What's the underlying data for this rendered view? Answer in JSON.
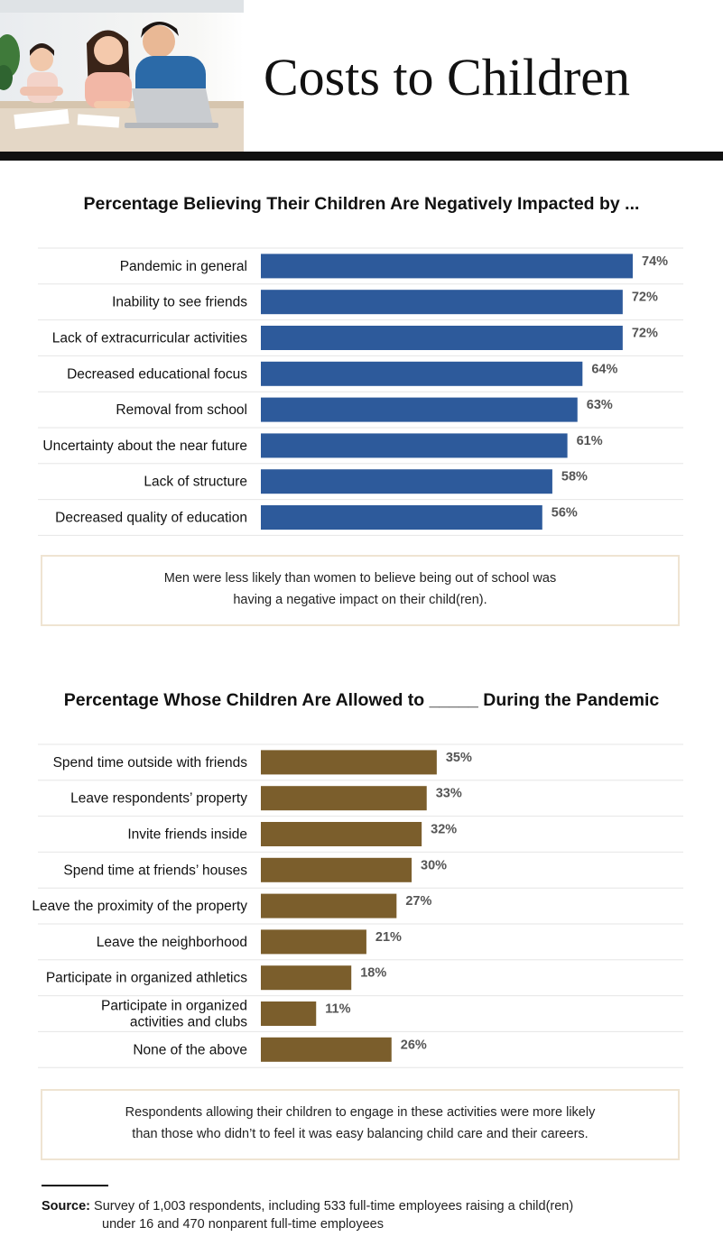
{
  "page": {
    "title": "Costs to Children"
  },
  "chart_data": [
    {
      "type": "bar",
      "orientation": "horizontal",
      "title": "Percentage Believing Their Children Are Negatively Impacted by ...",
      "categories": [
        "Pandemic in general",
        "Inability to see friends",
        "Lack of extracurricular activities",
        "Decreased educational focus",
        "Removal from school",
        "Uncertainty about the near future",
        "Lack of structure",
        "Decreased quality of education"
      ],
      "values": [
        74,
        72,
        72,
        64,
        63,
        61,
        58,
        56
      ],
      "value_labels": [
        "74%",
        "72%",
        "72%",
        "64%",
        "63%",
        "61%",
        "58%",
        "56%"
      ],
      "unit": "%",
      "color": "#2d5a9b",
      "xlim": [
        0,
        76
      ]
    },
    {
      "type": "bar",
      "orientation": "horizontal",
      "title": "Percentage Whose Children Are Allowed to _____ During the Pandemic",
      "categories": [
        "Spend time outside with friends",
        "Leave respondents’ property",
        "Invite friends inside",
        "Spend time at friends’ houses",
        "Leave the proximity of the property",
        "Leave the neighborhood",
        "Participate in organized athletics",
        "Participate in organized activities and clubs",
        "None of the above"
      ],
      "values": [
        35,
        33,
        32,
        30,
        27,
        21,
        18,
        11,
        26
      ],
      "value_labels": [
        "35%",
        "33%",
        "32%",
        "30%",
        "27%",
        "21%",
        "18%",
        "11%",
        "26%"
      ],
      "unit": "%",
      "color": "#7b5e2c",
      "xlim": [
        0,
        76
      ]
    }
  ],
  "callouts": {
    "first": [
      "Men were less likely than women to believe being out of school was",
      "having a negative impact on their child(ren)."
    ],
    "second": [
      "Respondents allowing their children to engage in these activities were more likely",
      "than those who didn’t to feel it was easy balancing child care and their careers."
    ]
  },
  "source": {
    "label": "Source:",
    "line1": "Survey of 1,003 respondents, including 533 full-time employees raising a child(ren)",
    "line2": "under 16 and 470 nonparent full-time employees"
  },
  "colors": {
    "bar_blue": "#2d5a9b",
    "bar_brown": "#7b5e2c",
    "value_label": "#555555",
    "row_divider": "#e6e6e6",
    "callout_border": "#efe4d2"
  }
}
